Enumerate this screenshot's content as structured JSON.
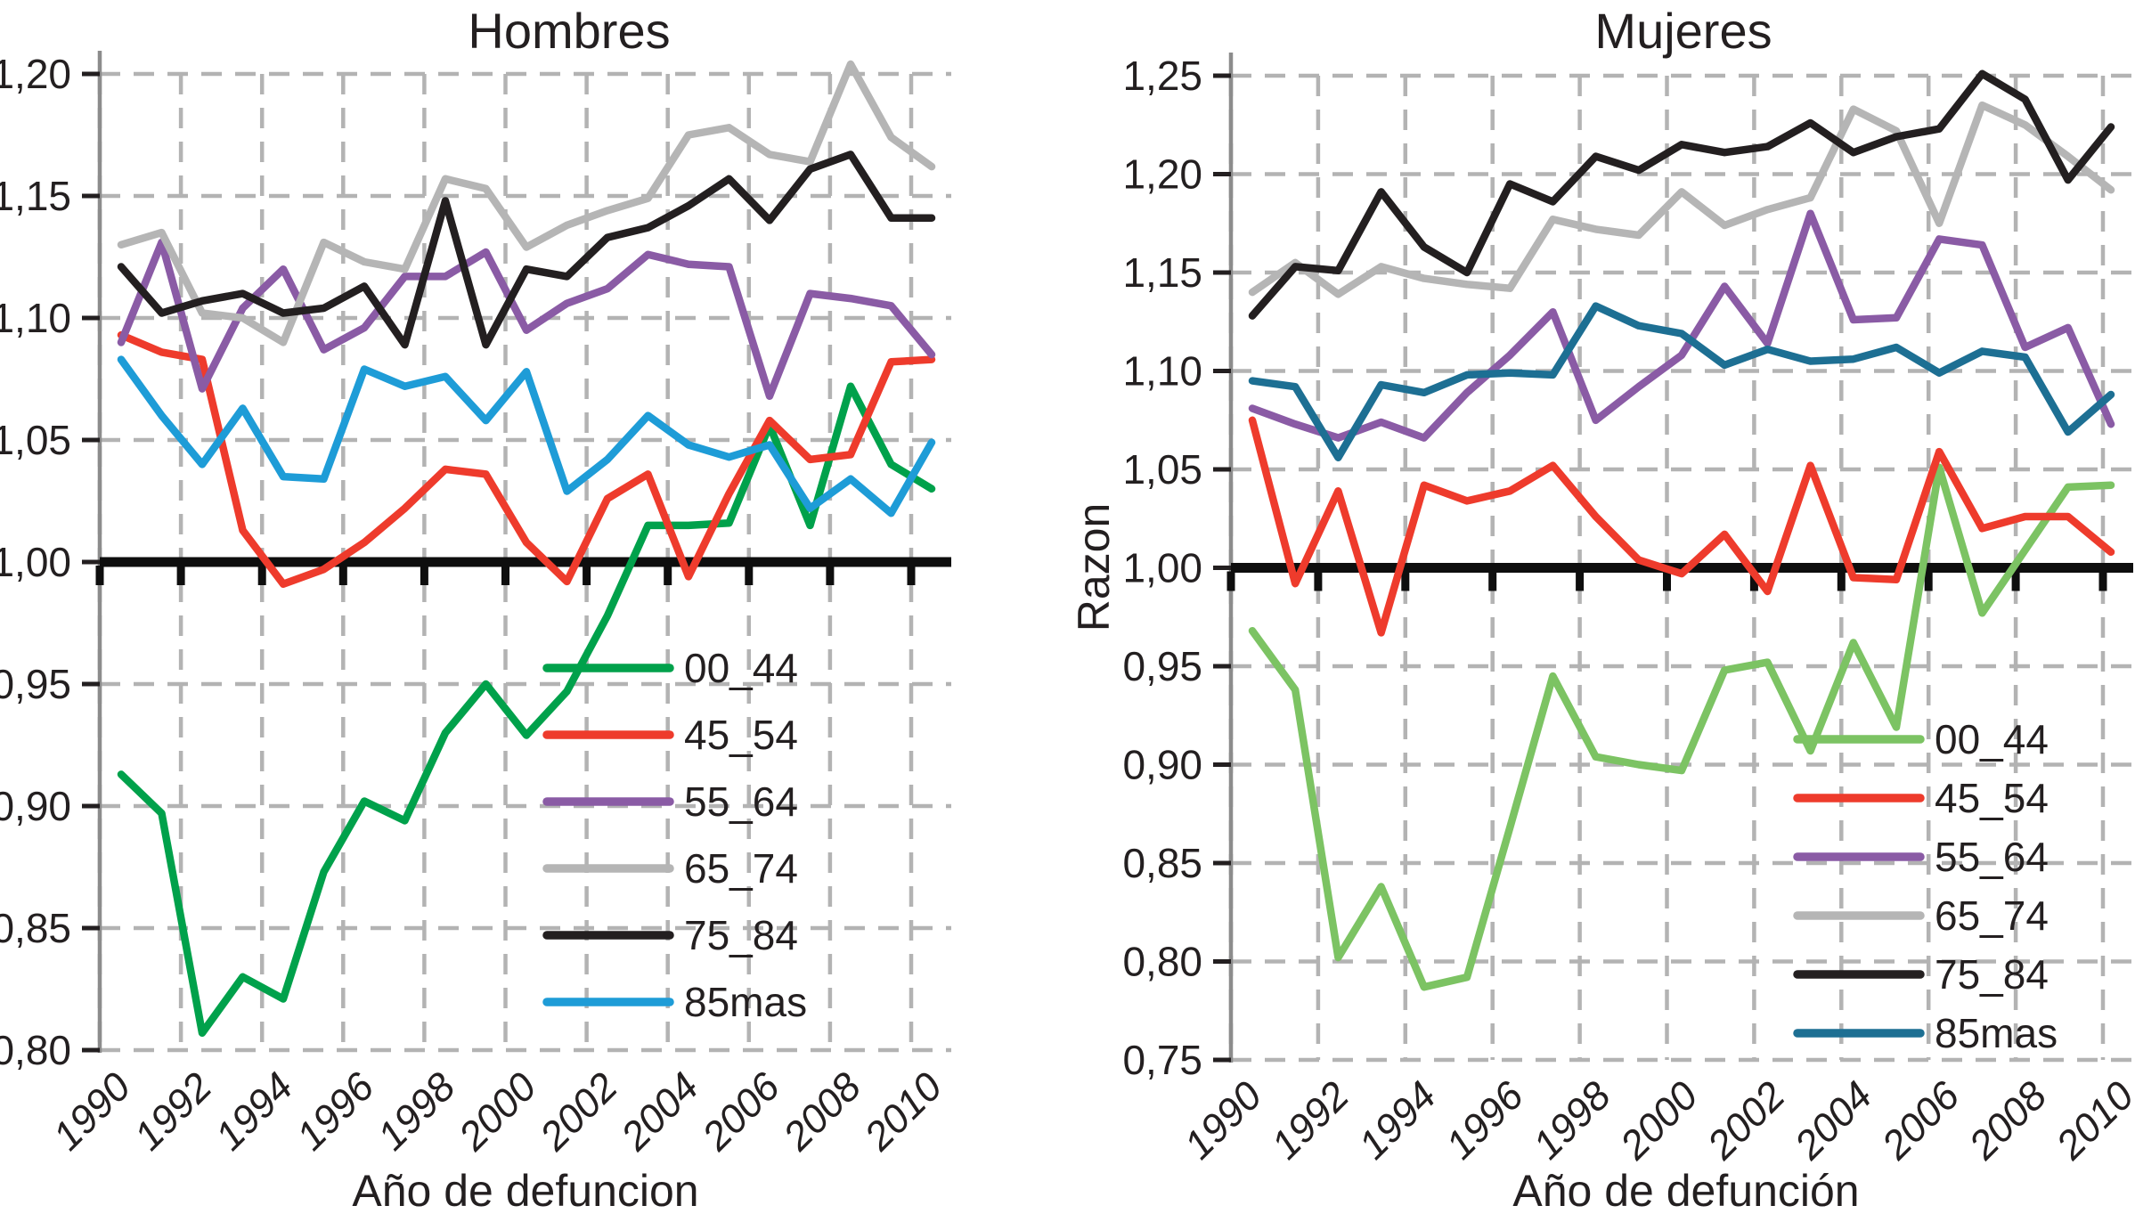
{
  "figure": {
    "left_title": "Hombres",
    "right_title": "Mujeres",
    "left_xlabel": "Año de defuncion",
    "right_xlabel": "Año de defunción",
    "right_ylabel": "Razon"
  },
  "chart_data": [
    {
      "type": "line",
      "title": "Hombres",
      "xlabel": "Año de defuncion",
      "ylabel": "",
      "ylim": [
        0.8,
        1.2
      ],
      "grid": true,
      "reference_line": 1.0,
      "legend_position": "center-right",
      "x": [
        1990,
        1991,
        1992,
        1993,
        1994,
        1995,
        1996,
        1997,
        1998,
        1999,
        2000,
        2001,
        2002,
        2003,
        2004,
        2005,
        2006,
        2007,
        2008,
        2009,
        2010
      ],
      "xticks": [
        {
          "label": "1990",
          "value": 1990
        },
        {
          "label": "1992",
          "value": 1992
        },
        {
          "label": "1994",
          "value": 1994
        },
        {
          "label": "1996",
          "value": 1996
        },
        {
          "label": "1998",
          "value": 1998
        },
        {
          "label": "2000",
          "value": 2000
        },
        {
          "label": "2002",
          "value": 2002
        },
        {
          "label": "2004",
          "value": 2004
        },
        {
          "label": "2006",
          "value": 2006
        },
        {
          "label": "2008",
          "value": 2008
        },
        {
          "label": "2010",
          "value": 2010
        }
      ],
      "yticks": [
        {
          "label": "0,80",
          "value": 0.8
        },
        {
          "label": "0,85",
          "value": 0.85
        },
        {
          "label": "0,90",
          "value": 0.9
        },
        {
          "label": "0,95",
          "value": 0.95
        },
        {
          "label": "1,00",
          "value": 1.0
        },
        {
          "label": "1,05",
          "value": 1.05
        },
        {
          "label": "1,10",
          "value": 1.1
        },
        {
          "label": "1,15",
          "value": 1.15
        },
        {
          "label": "1,20",
          "value": 1.2
        }
      ],
      "series": [
        {
          "name": "00_44",
          "color": "#00a14b",
          "values": [
            0.913,
            0.897,
            0.807,
            0.83,
            0.821,
            0.873,
            0.902,
            0.894,
            0.93,
            0.95,
            0.929,
            0.947,
            0.978,
            1.015,
            1.015,
            1.016,
            1.056,
            1.015,
            1.072,
            1.04,
            1.03
          ]
        },
        {
          "name": "45_54",
          "color": "#ee3b2c",
          "values": [
            1.093,
            1.086,
            1.083,
            1.013,
            0.991,
            0.997,
            1.008,
            1.022,
            1.038,
            1.036,
            1.008,
            0.992,
            1.026,
            1.036,
            0.994,
            1.028,
            1.058,
            1.042,
            1.044,
            1.082,
            1.083
          ]
        },
        {
          "name": "55_64",
          "color": "#8a5ba5",
          "values": [
            1.09,
            1.131,
            1.071,
            1.104,
            1.12,
            1.087,
            1.096,
            1.117,
            1.117,
            1.127,
            1.095,
            1.106,
            1.112,
            1.126,
            1.122,
            1.121,
            1.068,
            1.11,
            1.108,
            1.105,
            1.085
          ]
        },
        {
          "name": "65_74",
          "color": "#b5b5b5",
          "values": [
            1.13,
            1.135,
            1.102,
            1.1,
            1.09,
            1.131,
            1.123,
            1.12,
            1.157,
            1.153,
            1.129,
            1.138,
            1.144,
            1.149,
            1.175,
            1.178,
            1.167,
            1.164,
            1.204,
            1.174,
            1.162
          ]
        },
        {
          "name": "75_84",
          "color": "#231f20",
          "values": [
            1.121,
            1.102,
            1.107,
            1.11,
            1.102,
            1.104,
            1.113,
            1.089,
            1.148,
            1.089,
            1.12,
            1.117,
            1.133,
            1.137,
            1.146,
            1.157,
            1.14,
            1.161,
            1.167,
            1.141,
            1.141
          ]
        },
        {
          "name": "85mas",
          "color": "#1e9cd7",
          "values": [
            1.083,
            1.06,
            1.04,
            1.063,
            1.035,
            1.034,
            1.079,
            1.072,
            1.076,
            1.058,
            1.078,
            1.029,
            1.042,
            1.06,
            1.048,
            1.043,
            1.048,
            1.022,
            1.034,
            1.02,
            1.049
          ]
        }
      ]
    },
    {
      "type": "line",
      "title": "Mujeres",
      "xlabel": "Año de defunción",
      "ylabel": "Razon",
      "ylim": [
        0.75,
        1.25
      ],
      "grid": true,
      "reference_line": 1.0,
      "legend_position": "center-right",
      "x": [
        1990,
        1991,
        1992,
        1993,
        1994,
        1995,
        1996,
        1997,
        1998,
        1999,
        2000,
        2001,
        2002,
        2003,
        2004,
        2005,
        2006,
        2007,
        2008,
        2009,
        2010
      ],
      "xticks": [
        {
          "label": "1990",
          "value": 1990
        },
        {
          "label": "1992",
          "value": 1992
        },
        {
          "label": "1994",
          "value": 1994
        },
        {
          "label": "1996",
          "value": 1996
        },
        {
          "label": "1998",
          "value": 1998
        },
        {
          "label": "2000",
          "value": 2000
        },
        {
          "label": "2002",
          "value": 2002
        },
        {
          "label": "2004",
          "value": 2004
        },
        {
          "label": "2006",
          "value": 2006
        },
        {
          "label": "2008",
          "value": 2008
        },
        {
          "label": "2010",
          "value": 2010
        }
      ],
      "yticks": [
        {
          "label": "0,75",
          "value": 0.75
        },
        {
          "label": "0,80",
          "value": 0.8
        },
        {
          "label": "0,85",
          "value": 0.85
        },
        {
          "label": "0,90",
          "value": 0.9
        },
        {
          "label": "0,95",
          "value": 0.95
        },
        {
          "label": "1,00",
          "value": 1.0
        },
        {
          "label": "1,05",
          "value": 1.05
        },
        {
          "label": "1,10",
          "value": 1.1
        },
        {
          "label": "1,15",
          "value": 1.15
        },
        {
          "label": "1,20",
          "value": 1.2
        },
        {
          "label": "1,25",
          "value": 1.25
        }
      ],
      "series": [
        {
          "name": "00_44",
          "color": "#7cc363",
          "values": [
            0.968,
            0.938,
            0.802,
            0.838,
            0.787,
            0.792,
            0.868,
            0.945,
            0.904,
            0.9,
            0.897,
            0.948,
            0.952,
            0.907,
            0.962,
            0.919,
            1.051,
            0.977,
            1.009,
            1.041,
            1.042
          ]
        },
        {
          "name": "45_54",
          "color": "#ee3b2c",
          "values": [
            1.075,
            0.992,
            1.039,
            0.967,
            1.042,
            1.034,
            1.039,
            1.052,
            1.026,
            1.004,
            0.997,
            1.017,
            0.988,
            1.052,
            0.995,
            0.994,
            1.059,
            1.02,
            1.026,
            1.026,
            1.008
          ]
        },
        {
          "name": "55_64",
          "color": "#8a5ba5",
          "values": [
            1.081,
            1.073,
            1.066,
            1.074,
            1.066,
            1.089,
            1.108,
            1.13,
            1.075,
            1.092,
            1.108,
            1.143,
            1.114,
            1.18,
            1.126,
            1.127,
            1.167,
            1.164,
            1.112,
            1.122,
            1.073
          ]
        },
        {
          "name": "65_74",
          "color": "#b5b5b5",
          "values": [
            1.14,
            1.155,
            1.139,
            1.153,
            1.147,
            1.144,
            1.142,
            1.177,
            1.172,
            1.169,
            1.191,
            1.174,
            1.182,
            1.188,
            1.233,
            1.222,
            1.175,
            1.235,
            1.225,
            1.209,
            1.192
          ]
        },
        {
          "name": "75_84",
          "color": "#231f20",
          "values": [
            1.128,
            1.153,
            1.151,
            1.191,
            1.163,
            1.15,
            1.195,
            1.186,
            1.209,
            1.202,
            1.215,
            1.211,
            1.214,
            1.226,
            1.211,
            1.219,
            1.223,
            1.251,
            1.238,
            1.197,
            1.224
          ]
        },
        {
          "name": "85mas",
          "color": "#1d6f93",
          "values": [
            1.095,
            1.092,
            1.056,
            1.093,
            1.089,
            1.098,
            1.099,
            1.098,
            1.133,
            1.123,
            1.119,
            1.103,
            1.111,
            1.105,
            1.106,
            1.112,
            1.099,
            1.11,
            1.107,
            1.069,
            1.088
          ]
        }
      ]
    }
  ]
}
